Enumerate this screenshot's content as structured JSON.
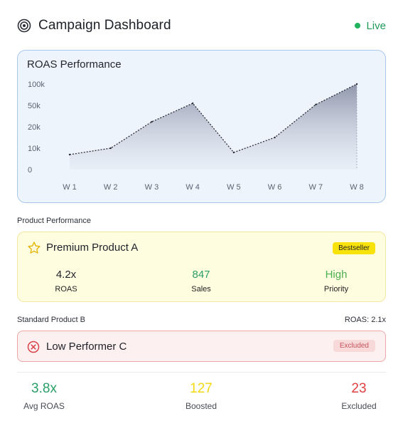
{
  "header": {
    "title": "Campaign Dashboard",
    "status": "Live",
    "status_color": "#22b35e"
  },
  "chart_data": {
    "type": "area",
    "title": "ROAS Performance",
    "categories": [
      "W 1",
      "W 2",
      "W 3",
      "W 4",
      "W 5",
      "W 6",
      "W 7",
      "W 8"
    ],
    "y_ticks": [
      "100k",
      "50k",
      "20k",
      "10k",
      "0"
    ],
    "values": [
      7000,
      10000,
      27000,
      55000,
      8000,
      15000,
      52000,
      100000
    ],
    "scale": "non-linear tick spacing (0, 10k, 20k, 50k, 100k equally spaced)",
    "grid": false,
    "legend": "none",
    "line_style": "dotted"
  },
  "products": {
    "section_label": "Product Performance",
    "product_a": {
      "name": "Premium Product A",
      "badge": "Bestseller",
      "metrics": [
        {
          "value": "4.2x",
          "label": "ROAS",
          "color": "#1e2128"
        },
        {
          "value": "847",
          "label": "Sales",
          "color": "#2a9e67"
        },
        {
          "value": "High",
          "label": "Priority",
          "color": "#4caf50"
        }
      ]
    },
    "product_b": {
      "name": "Standard Product B",
      "roas": "ROAS: 2.1x"
    },
    "product_c": {
      "name": "Low Performer C",
      "badge": "Excluded"
    }
  },
  "summary": [
    {
      "value": "3.8x",
      "label": "Avg ROAS",
      "color": "#2a9e67"
    },
    {
      "value": "127",
      "label": "Boosted",
      "color": "#f2d914"
    },
    {
      "value": "23",
      "label": "Excluded",
      "color": "#e04040"
    }
  ]
}
